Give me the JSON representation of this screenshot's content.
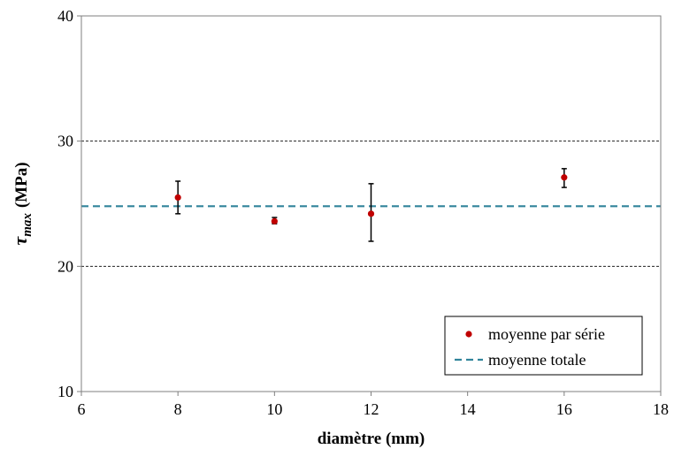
{
  "chart_data": {
    "type": "scatter",
    "xlabel": "diamètre (mm)",
    "ylabel": {
      "symbol": "τ",
      "subscript": "max",
      "unit": "(MPa)"
    },
    "xlim": [
      6,
      18
    ],
    "ylim": [
      10,
      40
    ],
    "xticks": [
      6,
      8,
      10,
      12,
      14,
      16,
      18
    ],
    "yticks": [
      10,
      20,
      30,
      40
    ],
    "grid": {
      "y_major": true,
      "gridline_values": [
        20,
        30
      ],
      "style": "dashed"
    },
    "legend": {
      "position": "bottom-right",
      "entries": [
        "moyenne par série",
        "moyenne totale"
      ]
    },
    "series": [
      {
        "name": "moyenne par série",
        "kind": "points-with-error-bars",
        "color": "#c00000",
        "x": [
          8,
          10,
          12,
          16
        ],
        "y": [
          25.5,
          23.6,
          24.2,
          27.1
        ],
        "err_low": [
          24.2,
          23.4,
          22.0,
          26.3
        ],
        "err_high": [
          26.8,
          23.9,
          26.6,
          27.8
        ]
      },
      {
        "name": "moyenne totale",
        "kind": "horizontal-line",
        "color": "#31849b",
        "y": 24.8
      }
    ]
  }
}
